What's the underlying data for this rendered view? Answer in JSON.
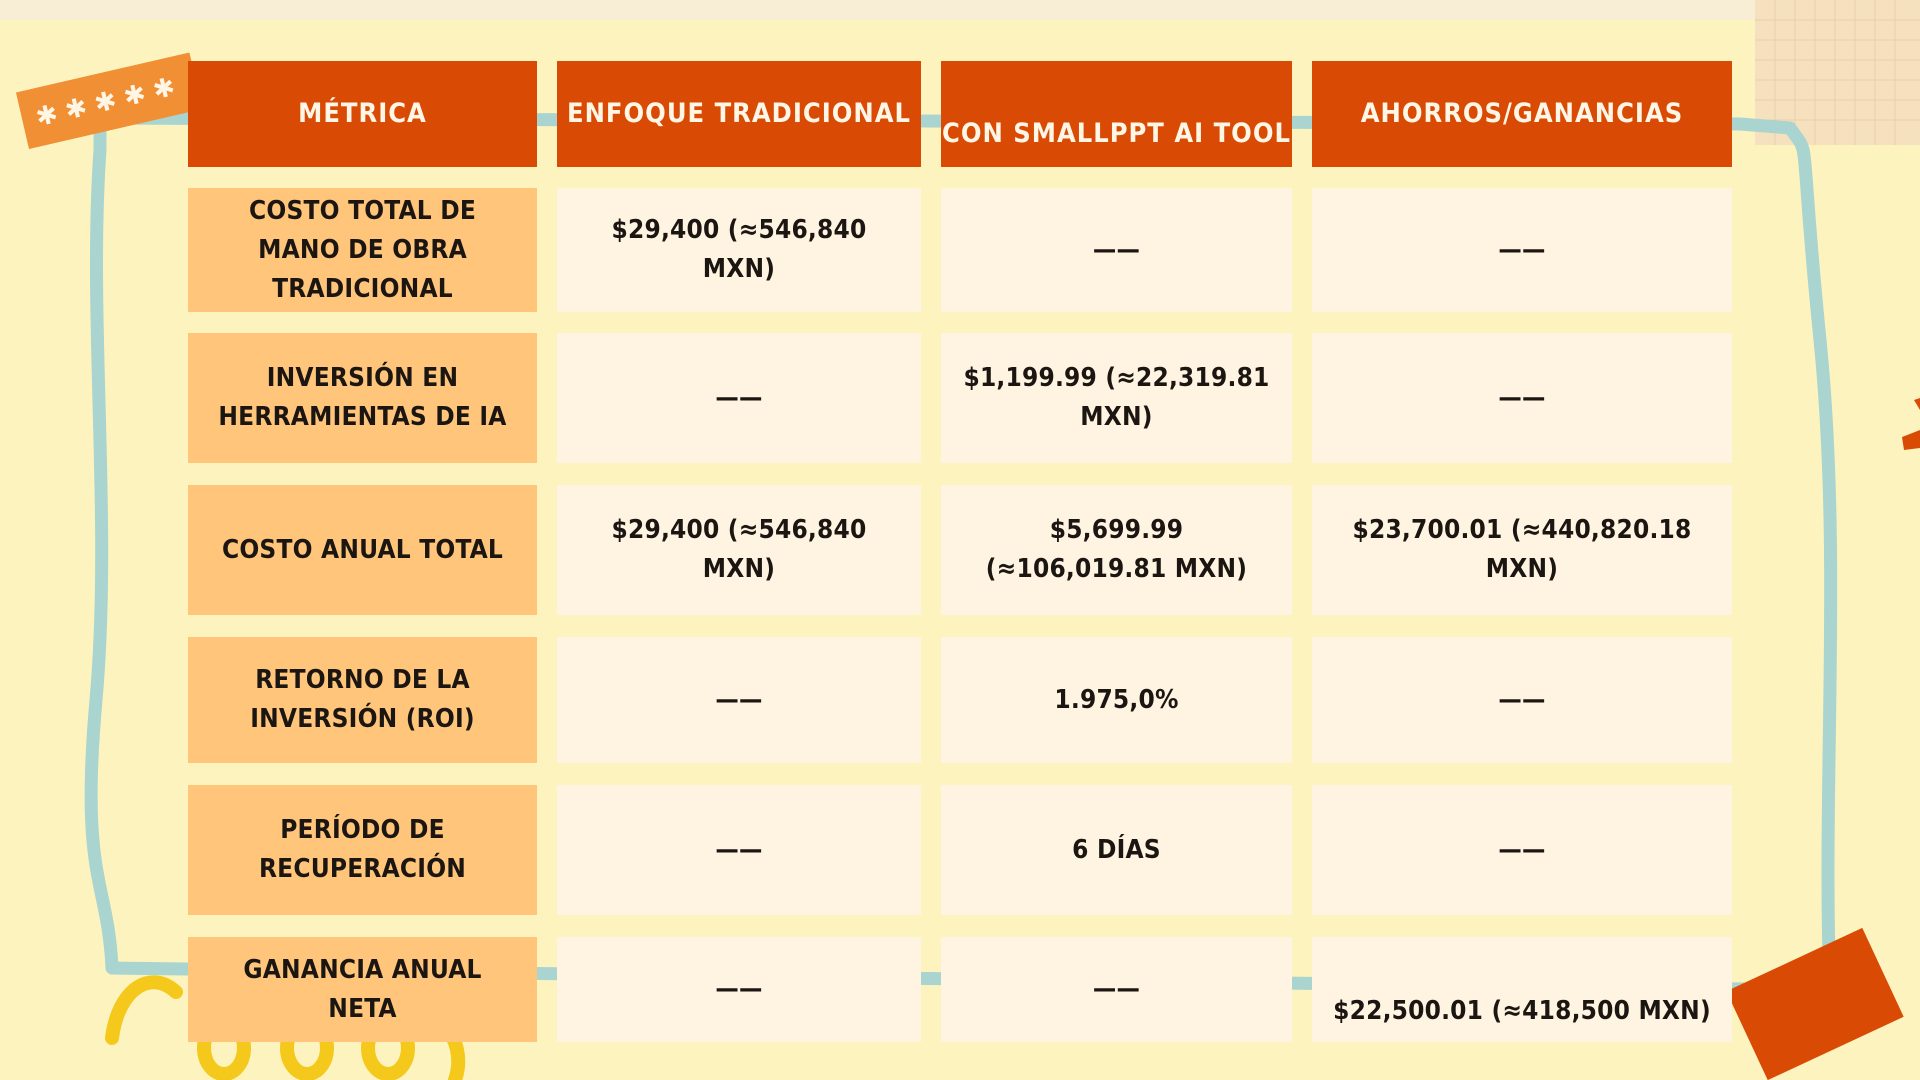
{
  "table": {
    "headers": [
      "Métrica",
      "Enfoque Tradicional",
      "Con SmallPPT AI Tool",
      "Ahorros/Ganancias"
    ],
    "rows": [
      {
        "label": "Costo total de mano de obra tradicional",
        "traditional": "$29,400 (≈546,840 MXN)",
        "with_ai": "——",
        "savings": "——"
      },
      {
        "label": "Inversión en herramientas de IA",
        "traditional": "——",
        "with_ai": "$1,199.99 (≈22,319.81 MXN)",
        "savings": "——"
      },
      {
        "label": "Costo anual total",
        "traditional": "$29,400 (≈546,840 MXN)",
        "with_ai": "$5,699.99 (≈106,019.81 MXN)",
        "savings": "$23,700.01 (≈440,820.18 MXN)"
      },
      {
        "label": "Retorno de la inversión (ROI)",
        "traditional": "——",
        "with_ai": "1.975,0%",
        "savings": "——"
      },
      {
        "label": "Período de recuperación",
        "traditional": "——",
        "with_ai": "6 días",
        "savings": "——"
      },
      {
        "label": "Ganancia anual neta",
        "traditional": "——",
        "with_ai": "——",
        "savings": "$22,500.01 (≈418,500 MXN)"
      }
    ]
  },
  "colors": {
    "background": "#fdf3bf",
    "header": "#d94a05",
    "label_cell": "#ffc57b",
    "value_cell": "#fff4e1",
    "frame_line": "#a9d4cf",
    "accent_yellow": "#f4c91c"
  }
}
